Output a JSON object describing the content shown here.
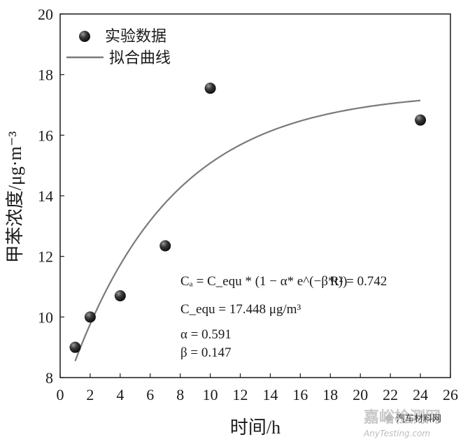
{
  "chart_data": {
    "type": "scatter",
    "xlabel": "时间/h",
    "ylabel": "甲苯浓度/μg·m⁻³",
    "xlim": [
      0,
      26
    ],
    "ylim": [
      8,
      20
    ],
    "xticks": [
      0,
      2,
      4,
      6,
      8,
      10,
      12,
      14,
      16,
      18,
      20,
      22,
      24,
      26
    ],
    "yticks": [
      8,
      10,
      12,
      14,
      16,
      18,
      20
    ],
    "grid": false,
    "legend_position": "top-left",
    "series": [
      {
        "name": "实验数据",
        "kind": "scatter",
        "color": "#2b2b2b",
        "x": [
          1,
          2,
          4,
          7,
          10,
          24
        ],
        "y": [
          9.0,
          10.0,
          10.7,
          12.35,
          17.55,
          16.5
        ]
      },
      {
        "name": "拟合曲线",
        "kind": "line",
        "color": "#7a7a7a",
        "model": {
          "C_equ": 17.448,
          "alpha": 0.591,
          "beta": 0.147
        },
        "x_range": [
          1,
          24
        ]
      }
    ],
    "annotations": {
      "equation": "Cₐ = C_equ * (1 − α* e^(−β*t))",
      "r2": "R² = 0.742",
      "cequ": "C_equ = 17.448 μg/m³",
      "alpha": "α = 0.591",
      "beta": "β = 0.147"
    }
  },
  "watermark": {
    "site": "嘉峪检测网",
    "url": "AnyTesting.com",
    "account": "汽车材料网"
  }
}
